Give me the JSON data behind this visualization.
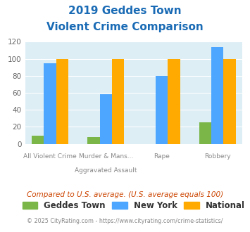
{
  "title_line1": "2019 Geddes Town",
  "title_line2": "Violent Crime Comparison",
  "cat_top": [
    "",
    "Murder & Mans...",
    "",
    ""
  ],
  "cat_bot": [
    "All Violent Crime",
    "Aggravated Assault",
    "Rape",
    "Robbery"
  ],
  "geddes_town": [
    10,
    8,
    0,
    25
  ],
  "new_york": [
    95,
    58,
    80,
    114
  ],
  "national": [
    100,
    100,
    100,
    100
  ],
  "geddes_color": "#7ab648",
  "ny_color": "#4da6ff",
  "national_color": "#ffaa00",
  "bg_color": "#ddeef5",
  "ylim": [
    0,
    120
  ],
  "yticks": [
    0,
    20,
    40,
    60,
    80,
    100,
    120
  ],
  "footnote": "Compared to U.S. average. (U.S. average equals 100)",
  "copyright": "© 2025 CityRating.com - https://www.cityrating.com/crime-statistics/",
  "title_color": "#1a6bb5",
  "footnote_color": "#cc4400",
  "copyright_color": "#888888"
}
